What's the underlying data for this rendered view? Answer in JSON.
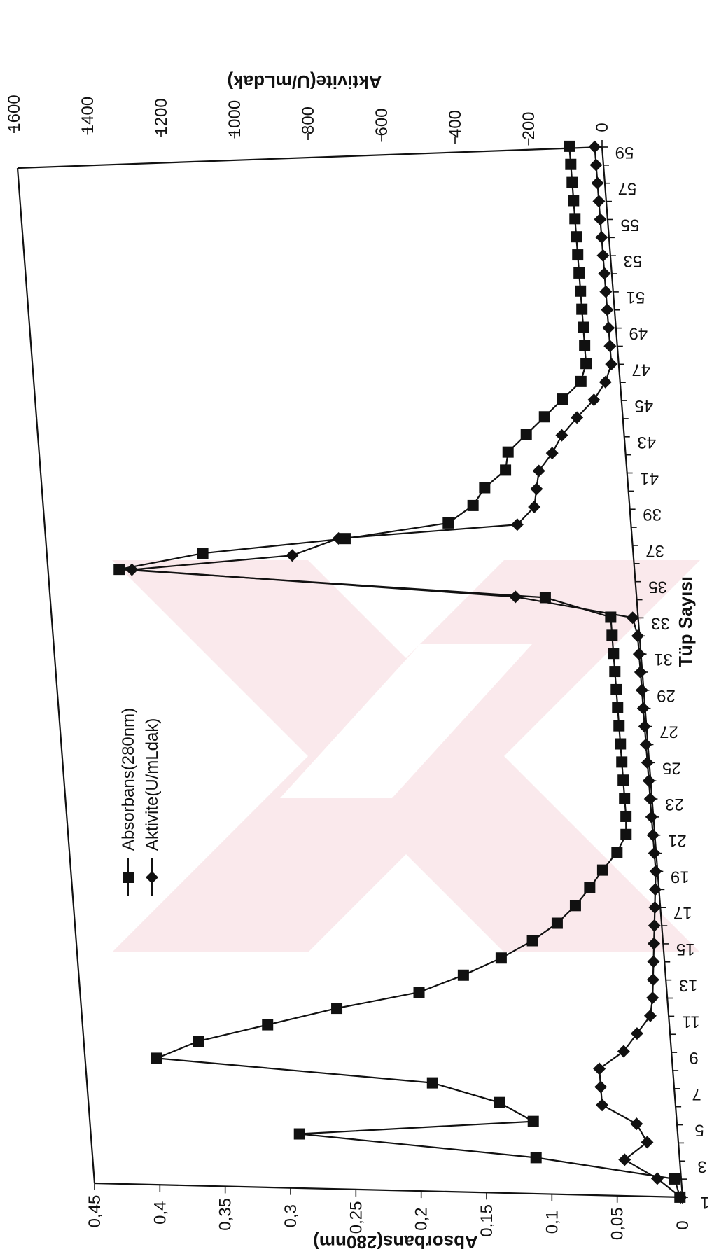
{
  "chart_data": {
    "type": "line",
    "xlabel": "Tüp Sayısı",
    "ylabel_left": "Absorbans(280nm)",
    "ylabel_right": "Aktivite(U/mLdak)",
    "y_left_lim": [
      0,
      0.45
    ],
    "y_right_lim": [
      0,
      1600
    ],
    "y_left_ticks": [
      "0",
      "0,05",
      "0,1",
      "0,15",
      "0,2",
      "0,25",
      "0,3",
      "0,35",
      "0,4",
      "0,45"
    ],
    "y_right_ticks": [
      "0",
      "200",
      "400",
      "600",
      "800",
      "1000",
      "1200",
      "1400",
      "1600"
    ],
    "x_tick_labels": [
      "1",
      "3",
      "5",
      "7",
      "9",
      "11",
      "13",
      "15",
      "17",
      "19",
      "21",
      "23",
      "25",
      "27",
      "29",
      "31",
      "33",
      "35",
      "37",
      "39",
      "41",
      "43",
      "45",
      "47",
      "49",
      "51",
      "53",
      "55",
      "57",
      "59"
    ],
    "legend_position": "inside-left",
    "x": [
      1,
      2,
      3,
      4,
      5,
      6,
      7,
      8,
      9,
      10,
      11,
      12,
      13,
      14,
      15,
      16,
      17,
      18,
      19,
      20,
      21,
      22,
      23,
      24,
      25,
      26,
      27,
      28,
      29,
      30,
      31,
      32,
      33,
      34,
      35,
      36,
      37,
      38,
      39,
      40,
      41,
      42,
      43,
      44,
      45,
      46,
      47,
      48,
      49,
      50,
      51,
      52,
      53,
      54,
      55,
      56,
      57,
      58,
      59
    ],
    "series": [
      {
        "name": "Absorbans(280nm)",
        "axis": "left",
        "marker": "square",
        "values": [
          0.002,
          0.005,
          0.11,
          0.29,
          0.11,
          0.135,
          0.185,
          0.395,
          0.362,
          0.308,
          0.254,
          0.19,
          0.155,
          0.125,
          0.1,
          0.08,
          0.065,
          0.053,
          0.042,
          0.03,
          0.022,
          0.021,
          0.021,
          0.021,
          0.021,
          0.021,
          0.021,
          0.021,
          0.021,
          0.021,
          0.021,
          0.021,
          0.021,
          0.07,
          0.395,
          0.33,
          0.22,
          0.14,
          0.12,
          0.11,
          0.093,
          0.09,
          0.075,
          0.06,
          0.045,
          0.03,
          0.025,
          0.025,
          0.025,
          0.025,
          0.025,
          0.025,
          0.025,
          0.025,
          0.025,
          0.025,
          0.025,
          0.025,
          0.025
        ]
      },
      {
        "name": "Aktivite(U/mLdak)",
        "axis": "right",
        "marker": "diamond",
        "values": [
          5,
          65,
          150,
          85,
          110,
          200,
          200,
          200,
          130,
          90,
          50,
          40,
          35,
          30,
          25,
          20,
          15,
          10,
          5,
          5,
          5,
          5,
          5,
          5,
          5,
          5,
          5,
          5,
          5,
          5,
          5,
          5,
          15,
          330,
          1370,
          930,
          800,
          310,
          260,
          250,
          240,
          200,
          170,
          125,
          75,
          40,
          20,
          20,
          20,
          20,
          20,
          20,
          20,
          20,
          20,
          20,
          20,
          20,
          20
        ]
      }
    ]
  }
}
